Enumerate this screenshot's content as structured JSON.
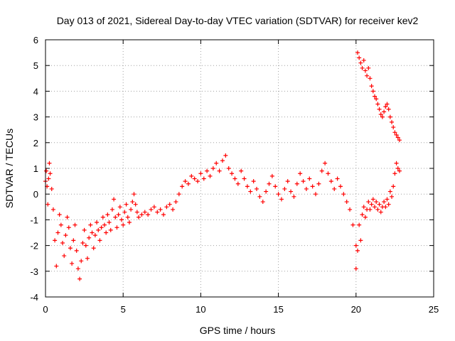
{
  "chart_data": {
    "type": "scatter",
    "title": "Day 013 of 2021, Sidereal Day-to-day VTEC variation (SDTVAR) for receiver kev2",
    "xlabel": "GPS time / hours",
    "ylabel": "SDTVAR / TECUs",
    "xlim": [
      0,
      25
    ],
    "ylim": [
      -4,
      6
    ],
    "xticks": [
      0,
      5,
      10,
      15,
      20,
      25
    ],
    "yticks": [
      -4,
      -3,
      -2,
      -1,
      0,
      1,
      2,
      3,
      4,
      5,
      6
    ],
    "grid": true,
    "marker": "+",
    "series": [
      {
        "name": "main",
        "color": "#ff0000",
        "x": [
          0.0,
          0.05,
          0.1,
          0.15,
          0.2,
          0.25,
          0.3,
          0.4,
          0.5,
          0.6,
          0.7,
          0.8,
          0.9,
          1.0,
          1.1,
          1.2,
          1.3,
          1.4,
          1.5,
          1.6,
          1.7,
          1.8,
          1.9,
          2.0,
          2.1,
          2.2,
          2.3,
          2.4,
          2.5,
          2.6,
          2.7,
          2.8,
          2.9,
          3.0,
          3.1,
          3.2,
          3.3,
          3.4,
          3.5,
          3.6,
          3.7,
          3.8,
          3.9,
          4.0,
          4.1,
          4.2,
          4.3,
          4.4,
          4.5,
          4.6,
          4.7,
          4.8,
          4.9,
          5.0,
          5.1,
          5.2,
          5.3,
          5.4,
          5.5,
          5.6,
          5.7,
          5.8,
          5.9,
          6.0,
          6.2,
          6.4,
          6.6,
          6.8,
          7.0,
          7.2,
          7.4,
          7.6,
          7.8,
          8.0,
          8.2,
          8.4,
          8.6,
          8.8,
          9.0,
          9.2,
          9.4,
          9.6,
          9.8,
          10.0,
          10.2,
          10.4,
          10.6,
          10.8,
          11.0,
          11.2,
          11.4,
          11.6,
          11.8,
          12.0,
          12.2,
          12.4,
          12.6,
          12.8,
          13.0,
          13.2,
          13.4,
          13.6,
          13.8,
          14.0,
          14.2,
          14.4,
          14.6,
          14.8,
          15.0,
          15.2,
          15.4,
          15.6,
          15.8,
          16.0,
          16.2,
          16.4,
          16.6,
          16.8,
          17.0,
          17.2,
          17.4,
          17.6,
          17.8,
          18.0,
          18.2,
          18.4,
          18.6,
          18.8,
          19.0,
          19.2,
          19.4,
          19.6,
          19.8,
          20.0
        ],
        "y": [
          0.5,
          0.9,
          0.3,
          -0.4,
          0.6,
          1.2,
          0.8,
          0.2,
          -0.6,
          -1.8,
          -2.8,
          -1.5,
          -0.8,
          -1.2,
          -1.9,
          -2.4,
          -1.6,
          -0.9,
          -1.3,
          -2.1,
          -2.7,
          -1.8,
          -1.2,
          -2.2,
          -2.9,
          -3.3,
          -2.6,
          -1.9,
          -1.4,
          -2.0,
          -2.5,
          -1.7,
          -1.2,
          -1.5,
          -2.1,
          -1.6,
          -1.1,
          -1.4,
          -1.8,
          -1.3,
          -0.9,
          -1.2,
          -1.5,
          -0.8,
          -1.1,
          -1.4,
          -0.6,
          -0.2,
          -0.9,
          -1.3,
          -0.8,
          -0.5,
          -1.0,
          -1.2,
          -0.7,
          -0.4,
          -0.9,
          -1.1,
          -0.6,
          -0.3,
          0.0,
          -0.4,
          -0.7,
          -0.9,
          -0.8,
          -0.7,
          -0.8,
          -0.6,
          -0.5,
          -0.7,
          -0.6,
          -0.8,
          -0.5,
          -0.4,
          -0.6,
          -0.3,
          0.0,
          0.3,
          0.5,
          0.4,
          0.7,
          0.6,
          0.5,
          0.8,
          0.6,
          0.9,
          0.7,
          1.0,
          1.2,
          0.9,
          1.3,
          1.5,
          1.0,
          0.8,
          0.6,
          0.4,
          0.9,
          0.6,
          0.3,
          0.1,
          0.5,
          0.2,
          -0.1,
          -0.3,
          0.1,
          0.4,
          0.7,
          0.3,
          0.0,
          -0.2,
          0.2,
          0.5,
          0.1,
          -0.1,
          0.4,
          0.8,
          0.5,
          0.2,
          0.6,
          0.3,
          0.0,
          0.4,
          0.9,
          1.2,
          0.8,
          0.5,
          0.2,
          0.6,
          0.3,
          0.0,
          -0.3,
          -0.6,
          -1.2,
          -2.0
        ]
      },
      {
        "name": "late-upper",
        "color": "#ff0000",
        "x": [
          20.1,
          20.2,
          20.3,
          20.4,
          20.5,
          20.6,
          20.7,
          20.8,
          20.9,
          21.0,
          21.1,
          21.2,
          21.3,
          21.4,
          21.5,
          21.6,
          21.7,
          21.8,
          21.9,
          22.0,
          22.1,
          22.2,
          22.3,
          22.4,
          22.5,
          22.6,
          22.7,
          22.8
        ],
        "y": [
          5.5,
          5.3,
          5.1,
          4.9,
          5.2,
          4.8,
          4.6,
          4.9,
          4.5,
          4.2,
          4.0,
          3.8,
          3.7,
          3.5,
          3.3,
          3.1,
          3.0,
          3.2,
          3.4,
          3.5,
          3.3,
          3.0,
          2.8,
          2.6,
          2.4,
          2.3,
          2.2,
          2.1
        ]
      },
      {
        "name": "late-lower",
        "color": "#ff0000",
        "x": [
          20.0,
          20.1,
          20.2,
          20.3,
          20.4,
          20.5,
          20.6,
          20.7,
          20.8,
          20.9,
          21.0,
          21.1,
          21.2,
          21.3,
          21.4,
          21.5,
          21.6,
          21.7,
          21.8,
          21.9,
          22.0,
          22.1,
          22.2,
          22.3,
          22.4,
          22.5,
          22.6,
          22.7,
          22.8
        ],
        "y": [
          -2.9,
          -2.2,
          -1.2,
          -1.8,
          -0.8,
          -0.5,
          -0.9,
          -0.6,
          -0.3,
          -0.6,
          -0.4,
          -0.2,
          -0.5,
          -0.3,
          -0.6,
          -0.4,
          -0.7,
          -0.5,
          -0.3,
          -0.5,
          -0.2,
          -0.4,
          0.1,
          -0.1,
          0.3,
          0.8,
          1.2,
          1.0,
          0.9
        ]
      }
    ]
  }
}
